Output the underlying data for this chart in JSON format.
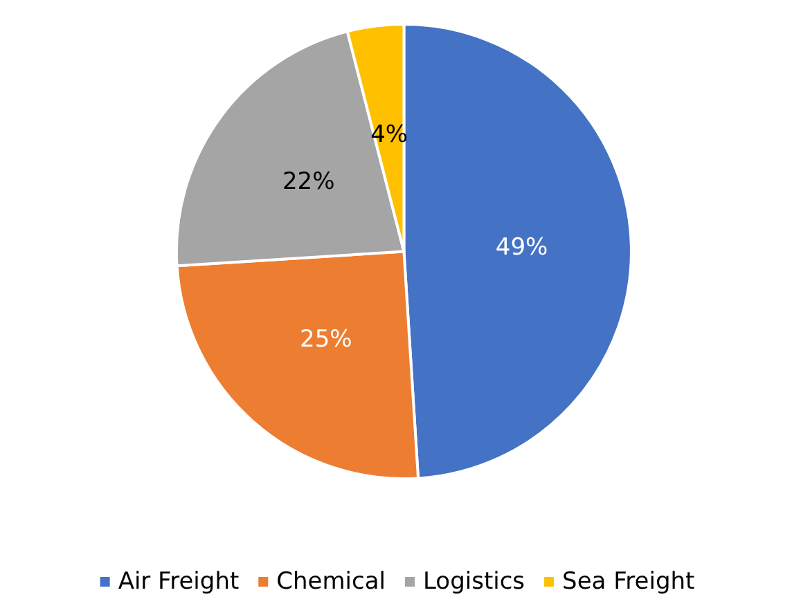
{
  "chart_data": {
    "type": "pie",
    "categories": [
      "Air Freight",
      "Chemical",
      "Logistics",
      "Sea Freight"
    ],
    "values": [
      49,
      25,
      22,
      4
    ],
    "colors": [
      "#4472c4",
      "#ed7d31",
      "#a5a5a5",
      "#ffc000"
    ],
    "value_labels": [
      "49%",
      "25%",
      "22%",
      "4%"
    ],
    "legend": "bottom"
  }
}
